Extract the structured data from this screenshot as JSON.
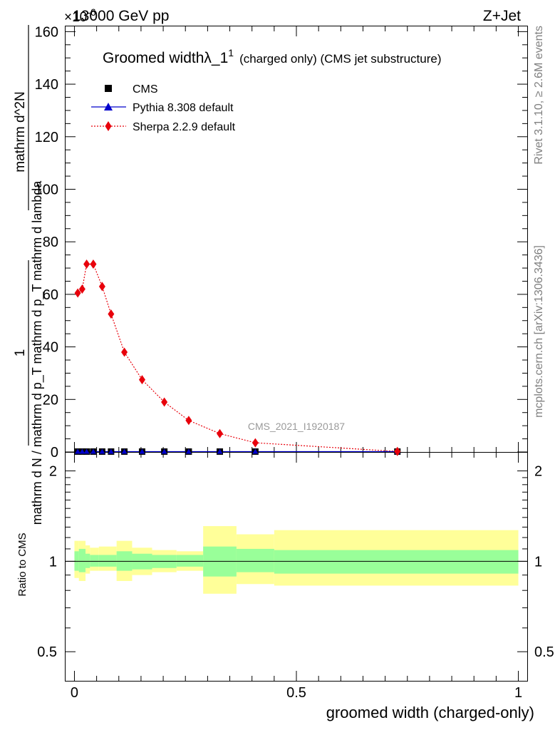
{
  "header": {
    "energy": "13000 GeV pp",
    "process": "Z+Jet",
    "exponent": "×10",
    "exponent_power": "-6"
  },
  "side_text": {
    "rivet": "Rivet 3.1.10, ≥ 2.6M events",
    "site": "mcplots.cern.ch [arXiv:1306.3436]"
  },
  "main_title": {
    "text": "Groomed width",
    "lambda": "λ_1",
    "lambda_sup": "1",
    "suffix": "(charged only) (CMS jet substructure)"
  },
  "legend": [
    {
      "label": "CMS",
      "marker": "square",
      "color": "#000000"
    },
    {
      "label": "Pythia 8.308 default",
      "marker": "triangle",
      "color": "#0000cc"
    },
    {
      "label": "Sherpa 2.2.9 default",
      "marker": "diamond",
      "color": "#e8000b"
    }
  ],
  "watermark": "CMS_2021_I1920187",
  "y_axis_main": {
    "label_num": "1",
    "label_den": "mathrm d N / mathrm d p_T mathrm d p_T mathrm d lambda",
    "label_right_num": "mathrm d^2N",
    "ticks": [
      "0",
      "20",
      "40",
      "60",
      "80",
      "100",
      "120",
      "140",
      "160"
    ]
  },
  "y_axis_ratio": {
    "label": "Ratio to CMS",
    "ticks": [
      "0.5",
      "1",
      "2"
    ]
  },
  "x_axis": {
    "label": "groomed width (charged-only)",
    "ticks": [
      "0",
      "0.5",
      "1"
    ]
  },
  "chart_data": [
    {
      "type": "line",
      "panel": "main",
      "xlim": [
        -0.02,
        1.02
      ],
      "ylim": [
        0,
        162
      ],
      "y_scale_note": "×10^-6",
      "series": [
        {
          "name": "Sherpa 2.2.9 default",
          "color": "#e8000b",
          "x": [
            0.0075,
            0.0175,
            0.0275,
            0.0425,
            0.0625,
            0.0825,
            0.1125,
            0.1525,
            0.2025,
            0.2575,
            0.3275,
            0.4075,
            0.7275
          ],
          "y": [
            60.5,
            62.0,
            71.5,
            71.5,
            63.0,
            52.5,
            38.0,
            27.5,
            19.0,
            12.0,
            7.0,
            3.5,
            0.2
          ]
        },
        {
          "name": "CMS",
          "color": "#000000",
          "x": [
            0.0075,
            0.0175,
            0.0275,
            0.0425,
            0.0625,
            0.0825,
            0.1125,
            0.1525,
            0.2025,
            0.2575,
            0.3275,
            0.4075,
            0.7275
          ],
          "y": [
            0.15,
            0.15,
            0.15,
            0.15,
            0.15,
            0.15,
            0.15,
            0.15,
            0.15,
            0.15,
            0.15,
            0.15,
            0.15
          ]
        },
        {
          "name": "Pythia 8.308 default",
          "color": "#0000cc",
          "x": [
            0.0075,
            0.0175,
            0.0275,
            0.0425,
            0.0625,
            0.0825,
            0.1125,
            0.1525,
            0.2025,
            0.2575,
            0.3275,
            0.4075,
            0.7275
          ],
          "y": [
            0.15,
            0.15,
            0.15,
            0.15,
            0.15,
            0.15,
            0.15,
            0.15,
            0.15,
            0.15,
            0.15,
            0.15,
            0.15
          ]
        }
      ]
    },
    {
      "type": "area",
      "panel": "ratio",
      "xlim": [
        -0.02,
        1.02
      ],
      "ylim": [
        0.4,
        2.3
      ],
      "log_scale": true,
      "reference_line": 1,
      "bins": [
        {
          "lo": 0.0,
          "hi": 0.01,
          "inner": [
            0.93,
            1.08
          ],
          "outer": [
            0.88,
            1.17
          ]
        },
        {
          "lo": 0.01,
          "hi": 0.025,
          "inner": [
            0.92,
            1.1
          ],
          "outer": [
            0.86,
            1.17
          ]
        },
        {
          "lo": 0.025,
          "hi": 0.035,
          "inner": [
            0.95,
            1.06
          ],
          "outer": [
            0.91,
            1.13
          ]
        },
        {
          "lo": 0.035,
          "hi": 0.055,
          "inner": [
            0.96,
            1.05
          ],
          "outer": [
            0.93,
            1.11
          ]
        },
        {
          "lo": 0.055,
          "hi": 0.095,
          "inner": [
            0.96,
            1.05
          ],
          "outer": [
            0.93,
            1.12
          ]
        },
        {
          "lo": 0.095,
          "hi": 0.13,
          "inner": [
            0.93,
            1.08
          ],
          "outer": [
            0.86,
            1.17
          ]
        },
        {
          "lo": 0.13,
          "hi": 0.175,
          "inner": [
            0.94,
            1.06
          ],
          "outer": [
            0.9,
            1.11
          ]
        },
        {
          "lo": 0.175,
          "hi": 0.23,
          "inner": [
            0.95,
            1.05
          ],
          "outer": [
            0.92,
            1.09
          ]
        },
        {
          "lo": 0.23,
          "hi": 0.29,
          "inner": [
            0.96,
            1.05
          ],
          "outer": [
            0.93,
            1.08
          ]
        },
        {
          "lo": 0.29,
          "hi": 0.365,
          "inner": [
            0.89,
            1.12
          ],
          "outer": [
            0.78,
            1.31
          ]
        },
        {
          "lo": 0.365,
          "hi": 0.45,
          "inner": [
            0.92,
            1.1
          ],
          "outer": [
            0.84,
            1.23
          ]
        },
        {
          "lo": 0.45,
          "hi": 1.0,
          "inner": [
            0.91,
            1.09
          ],
          "outer": [
            0.83,
            1.27
          ]
        }
      ]
    }
  ]
}
